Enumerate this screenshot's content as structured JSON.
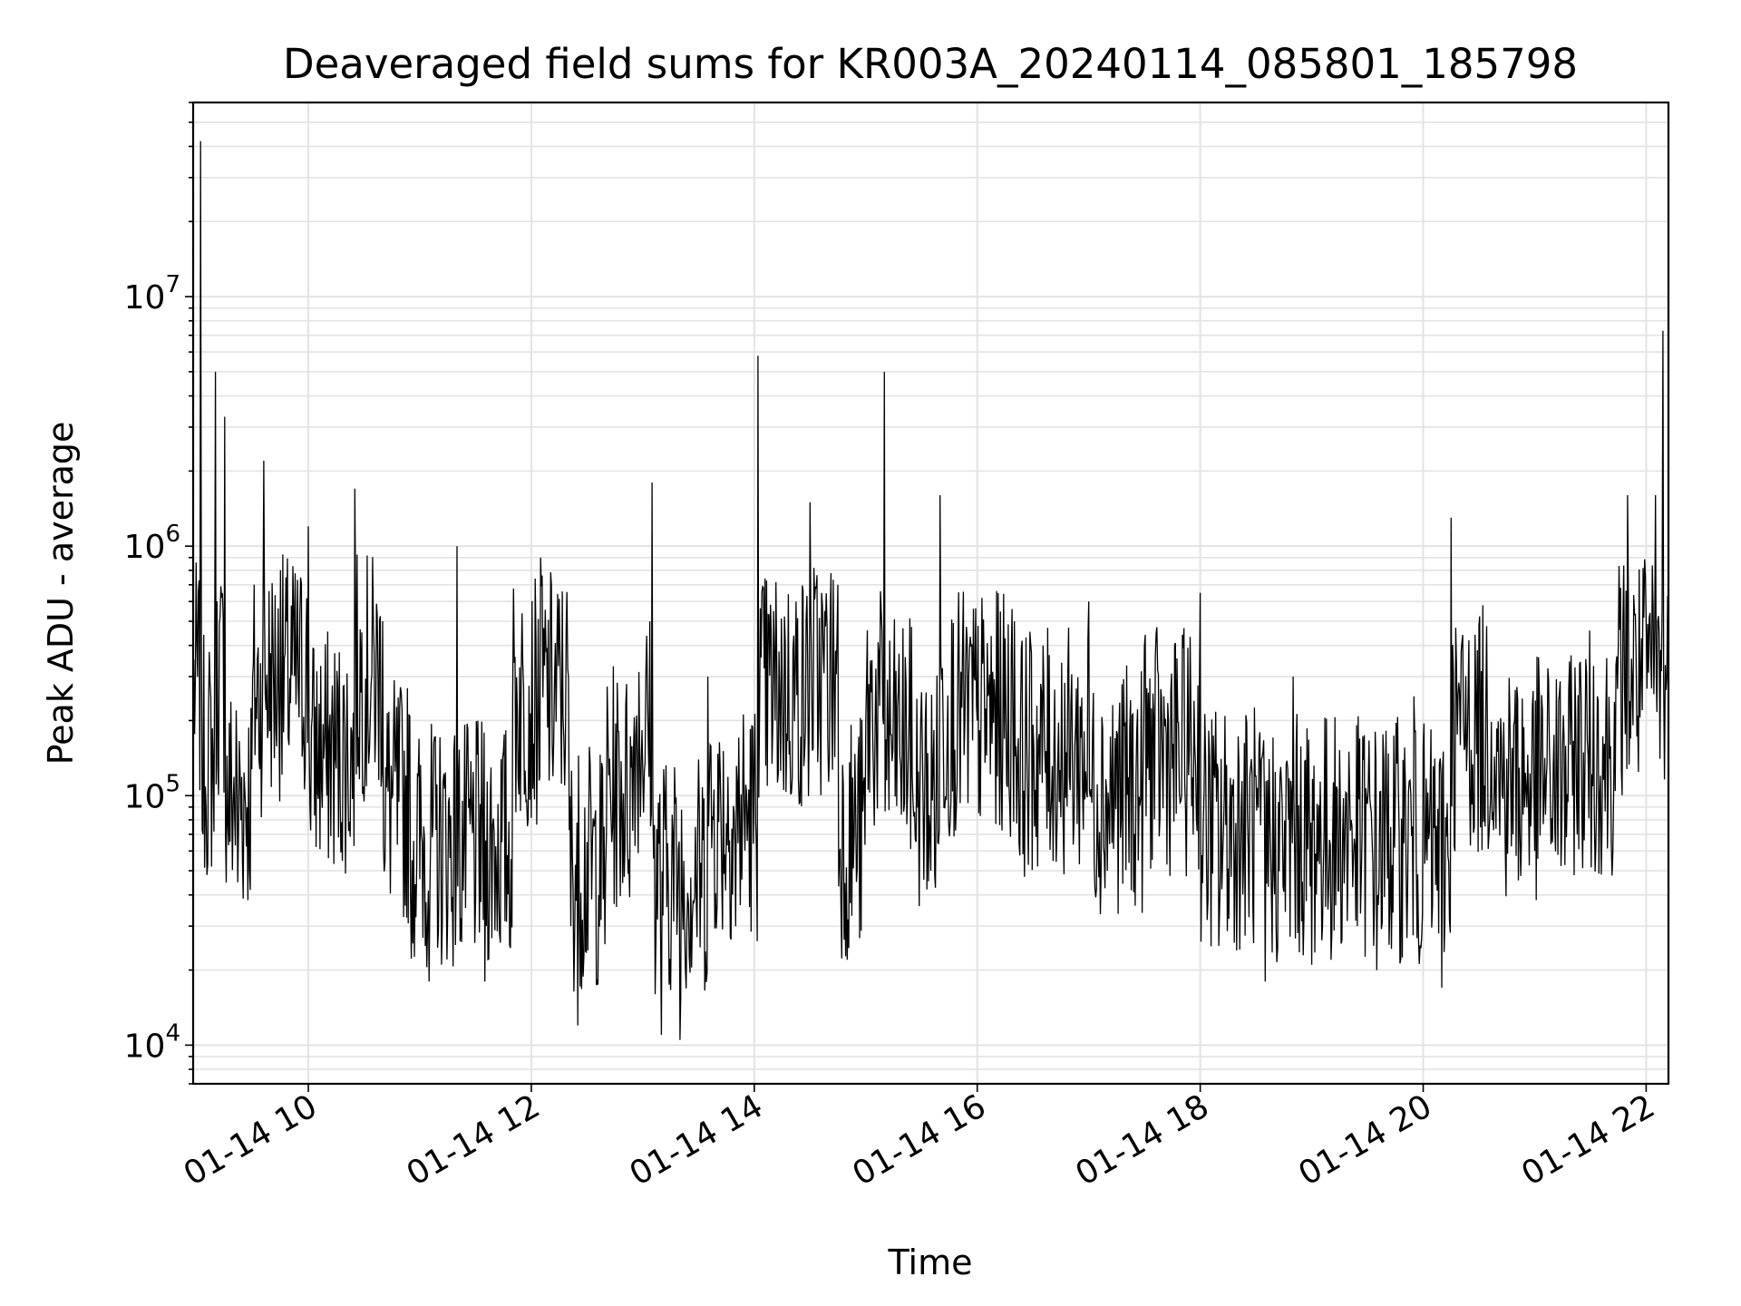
{
  "chart_data": {
    "type": "line",
    "title": "Deaveraged field sums for KR003A_20240114_085801_185798",
    "xlabel": "Time",
    "ylabel": "Peak ADU - average",
    "yscale": "log",
    "ylim": [
      7000,
      60000000
    ],
    "xlim": [
      "01-14 08:58",
      "01-14 22:12"
    ],
    "grid": true,
    "line_color": "#000000",
    "x_ticks": [
      "01-14 10",
      "01-14 12",
      "01-14 14",
      "01-14 16",
      "01-14 18",
      "01-14 20",
      "01-14 22"
    ],
    "y_ticks": [
      {
        "base": "10",
        "exp": "4",
        "value": 10000
      },
      {
        "base": "10",
        "exp": "5",
        "value": 100000
      },
      {
        "base": "10",
        "exp": "6",
        "value": 1000000
      },
      {
        "base": "10",
        "exp": "7",
        "value": 10000000
      }
    ],
    "series": [
      {
        "points": [
          [
            "01-14 08:58",
            350000
          ],
          [
            "01-14 09:02",
            42000000
          ],
          [
            "01-14 09:05",
            90000
          ],
          [
            "01-14 09:10",
            5000000
          ],
          [
            "01-14 09:15",
            3300000
          ],
          [
            "01-14 09:22",
            45000
          ],
          [
            "01-14 09:30",
            300000
          ],
          [
            "01-14 09:36",
            2200000
          ],
          [
            "01-14 09:45",
            800000
          ],
          [
            "01-14 10:00",
            1200000
          ],
          [
            "01-14 10:10",
            100000
          ],
          [
            "01-14 10:25",
            1700000
          ],
          [
            "01-14 10:40",
            500000
          ],
          [
            "01-14 10:55",
            40000
          ],
          [
            "01-14 11:05",
            18000
          ],
          [
            "01-14 11:20",
            1000000
          ],
          [
            "01-14 11:35",
            18000
          ],
          [
            "01-14 11:50",
            250000
          ],
          [
            "01-14 12:05",
            900000
          ],
          [
            "01-14 12:20",
            300000
          ],
          [
            "01-14 12:25",
            12000
          ],
          [
            "01-14 12:40",
            50000
          ],
          [
            "01-14 12:55",
            150000
          ],
          [
            "01-14 13:05",
            1800000
          ],
          [
            "01-14 13:10",
            11000
          ],
          [
            "01-14 13:20",
            10500
          ],
          [
            "01-14 13:35",
            300000
          ],
          [
            "01-14 13:50",
            30000
          ],
          [
            "01-14 14:02",
            5800000
          ],
          [
            "01-14 14:15",
            300000
          ],
          [
            "01-14 14:30",
            1500000
          ],
          [
            "01-14 14:45",
            700000
          ],
          [
            "01-14 14:50",
            22000
          ],
          [
            "01-14 15:00",
            200000
          ],
          [
            "01-14 15:10",
            5000000
          ],
          [
            "01-14 15:25",
            120000
          ],
          [
            "01-14 15:35",
            50000
          ],
          [
            "01-14 15:40",
            1600000
          ],
          [
            "01-14 16:00",
            200000
          ],
          [
            "01-14 16:20",
            500000
          ],
          [
            "01-14 16:40",
            100000
          ],
          [
            "01-14 17:00",
            600000
          ],
          [
            "01-14 17:10",
            50000
          ],
          [
            "01-14 17:30",
            400000
          ],
          [
            "01-14 17:50",
            100000
          ],
          [
            "01-14 18:00",
            650000
          ],
          [
            "01-14 18:10",
            25000
          ],
          [
            "01-14 18:30",
            120000
          ],
          [
            "01-14 18:35",
            18000
          ],
          [
            "01-14 18:50",
            300000
          ],
          [
            "01-14 19:00",
            21000
          ],
          [
            "01-14 19:20",
            150000
          ],
          [
            "01-14 19:35",
            20000
          ],
          [
            "01-14 19:55",
            250000
          ],
          [
            "01-14 20:10",
            17000
          ],
          [
            "01-14 20:15",
            1300000
          ],
          [
            "01-14 20:40",
            150000
          ],
          [
            "01-14 21:00",
            60000
          ],
          [
            "01-14 21:20",
            200000
          ],
          [
            "01-14 21:35",
            100000
          ],
          [
            "01-14 21:45",
            400000
          ],
          [
            "01-14 21:50",
            1600000
          ],
          [
            "01-14 22:00",
            500000
          ],
          [
            "01-14 22:05",
            1600000
          ],
          [
            "01-14 22:09",
            7300000
          ],
          [
            "01-14 22:12",
            400000
          ]
        ]
      }
    ]
  }
}
